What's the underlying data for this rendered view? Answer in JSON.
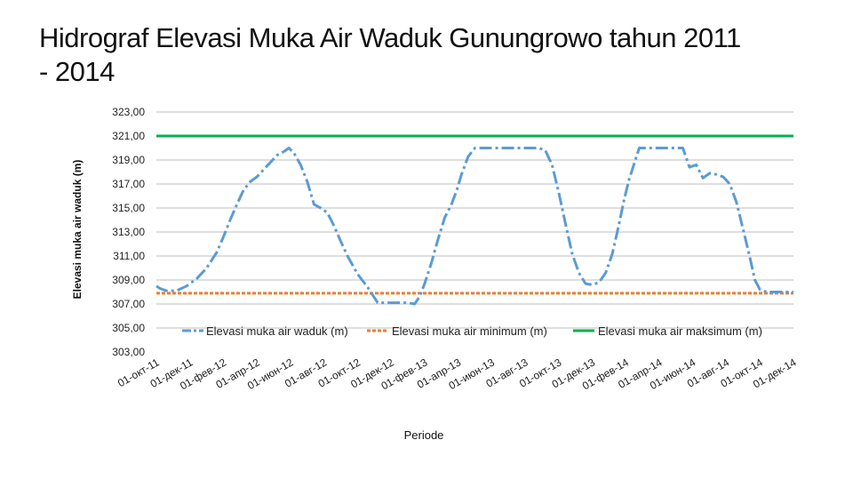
{
  "chart_data": {
    "type": "line",
    "title": "Hidrograf Elevasi Muka Air Waduk Gunungrowo tahun 2011 - 2014",
    "xlabel": "Periode",
    "ylabel": "Elevasi muka air waduk (m)",
    "ylim": [
      303,
      323
    ],
    "yticks": [
      "303,00",
      "305,00",
      "307,00",
      "309,00",
      "311,00",
      "313,00",
      "315,00",
      "317,00",
      "319,00",
      "321,00",
      "323,00"
    ],
    "categories": [
      "01-окт-11",
      "01-дек-11",
      "01-фев-12",
      "01-апр-12",
      "01-июн-12",
      "01-авг-12",
      "01-окт-12",
      "01-дек-12",
      "01-фев-13",
      "01-апр-13",
      "01-июн-13",
      "01-авг-13",
      "01-окт-13",
      "01-дек-13",
      "01-фев-14",
      "01-апр-14",
      "01-июн-14",
      "01-авг-14",
      "01-окт-14",
      "01-дек-14"
    ],
    "grid": true,
    "legend_position": "bottom-inside",
    "series": [
      {
        "name": "Elevasi muka air waduk (m)",
        "color": "#5b9bd5",
        "style": "dash-dot",
        "x": [
          0,
          0.1,
          0.3,
          0.6,
          0.9,
          1.2,
          1.5,
          1.8,
          2.0,
          2.2,
          2.4,
          2.6,
          2.8,
          3.0,
          3.2,
          3.4,
          3.6,
          3.8,
          3.95,
          4.1,
          4.3,
          4.5,
          4.7,
          4.9,
          5.1,
          5.3,
          5.5,
          5.7,
          5.9,
          6.0,
          6.3,
          6.6,
          6.9,
          7.2,
          7.5,
          7.7,
          7.85,
          8.0,
          8.2,
          8.4,
          8.6,
          8.8,
          8.95,
          9.1,
          9.3,
          9.5,
          9.7,
          9.85,
          10.0,
          10.3,
          10.6,
          10.9,
          11.2,
          11.4,
          11.6,
          11.8,
          12.0,
          12.2,
          12.4,
          12.6,
          12.8,
          13.0,
          13.2,
          13.4,
          13.6,
          13.8,
          13.95,
          14.1,
          14.4,
          14.7,
          15.0,
          15.3,
          15.5,
          15.7,
          15.9,
          16.1,
          16.3,
          16.5,
          16.7,
          16.9,
          17.1,
          17.3,
          17.5,
          17.7,
          17.85,
          18.0,
          18.2,
          18.4,
          18.6,
          18.8,
          19.0
        ],
        "values": [
          308.5,
          308.3,
          308.1,
          308.1,
          308.5,
          309.1,
          310.0,
          311.3,
          312.6,
          314.0,
          315.3,
          316.5,
          317.2,
          317.6,
          318.2,
          318.8,
          319.4,
          319.7,
          320.0,
          319.6,
          318.6,
          317.2,
          315.3,
          315.0,
          314.6,
          313.5,
          312.2,
          311.0,
          310.0,
          309.5,
          308.4,
          307.1,
          307.1,
          307.1,
          307.1,
          307.0,
          307.6,
          308.7,
          310.4,
          312.4,
          314.2,
          315.3,
          316.4,
          317.8,
          319.3,
          320.0,
          320.0,
          320.0,
          320.0,
          320.0,
          320.0,
          320.0,
          320.0,
          320.0,
          319.8,
          318.6,
          316.3,
          313.7,
          311.2,
          309.6,
          308.7,
          308.6,
          308.8,
          309.6,
          311.2,
          313.7,
          315.7,
          317.4,
          320.0,
          320.0,
          320.0,
          320.0,
          320.0,
          320.0,
          318.4,
          318.6,
          317.5,
          317.9,
          317.8,
          317.6,
          317.0,
          315.5,
          313.2,
          310.9,
          309.0,
          308.2,
          308.0,
          308.0,
          308.0,
          308.0,
          308.0
        ]
      },
      {
        "name": "Elevasi muka air minimum (m)",
        "color": "#ed7d31",
        "style": "dashed",
        "x": [
          0,
          19
        ],
        "values": [
          307.9,
          307.9
        ]
      },
      {
        "name": "Elevasi muka air maksimum (m)",
        "color": "#00b050",
        "style": "solid",
        "x": [
          0,
          19
        ],
        "values": [
          321.0,
          321.0
        ]
      }
    ]
  }
}
